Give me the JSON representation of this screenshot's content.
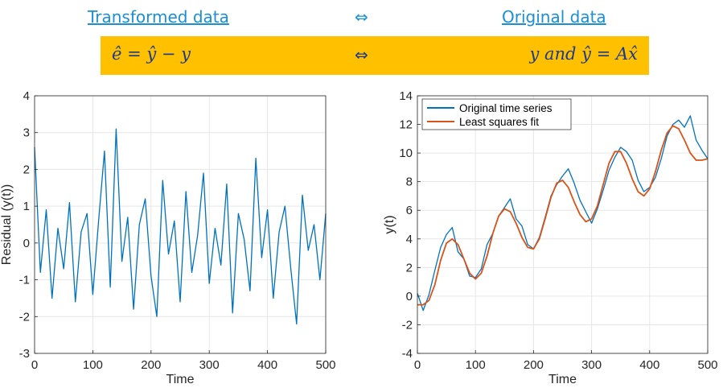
{
  "header": {
    "left_link": "Transformed data",
    "right_link": "Original data",
    "arrow": "⇔"
  },
  "formula_band": {
    "left_formula": "ê = ŷ − y",
    "arrow": "⇔",
    "right_formula": "y  and  ŷ = Ax̂",
    "color": "#ffc000"
  },
  "chart_data": [
    {
      "type": "line",
      "title": "",
      "xlabel": "Time",
      "ylabel": "Residual (y(t))",
      "xlim": [
        0,
        500
      ],
      "ylim": [
        -3,
        4
      ],
      "xticks": [
        0,
        100,
        200,
        300,
        400,
        500
      ],
      "yticks": [
        -3,
        -2,
        -1,
        0,
        1,
        2,
        3,
        4
      ],
      "grid": true,
      "series": [
        {
          "color": "#0072bd",
          "description": "white-noise residuals, 500 samples",
          "x": [
            0,
            10,
            20,
            30,
            40,
            50,
            60,
            70,
            80,
            90,
            100,
            110,
            120,
            130,
            140,
            150,
            160,
            170,
            180,
            190,
            200,
            210,
            220,
            230,
            240,
            250,
            260,
            270,
            280,
            290,
            300,
            310,
            320,
            330,
            340,
            350,
            360,
            370,
            380,
            390,
            400,
            410,
            420,
            430,
            440,
            450,
            460,
            470,
            480,
            490,
            500
          ],
          "values": [
            2.6,
            -0.8,
            0.9,
            -1.5,
            0.4,
            -0.7,
            1.1,
            -1.6,
            0.3,
            0.8,
            -1.4,
            0.6,
            2.5,
            -1.2,
            3.1,
            -0.5,
            0.7,
            -1.8,
            0.5,
            1.2,
            -0.9,
            -2.0,
            1.7,
            -0.3,
            0.6,
            -1.6,
            1.4,
            -0.8,
            0.2,
            1.9,
            -1.1,
            0.4,
            -0.6,
            1.6,
            -1.9,
            0.8,
            0.1,
            -1.3,
            2.3,
            -0.4,
            0.9,
            -1.5,
            0.3,
            1.0,
            -0.7,
            -2.2,
            1.3,
            -0.2,
            0.5,
            -1.0,
            0.8
          ]
        }
      ]
    },
    {
      "type": "line",
      "title": "",
      "xlabel": "Time",
      "ylabel": "y(t)",
      "xlim": [
        0,
        500
      ],
      "ylim": [
        -4,
        14
      ],
      "xticks": [
        0,
        100,
        200,
        300,
        400,
        500
      ],
      "yticks": [
        -4,
        -2,
        0,
        2,
        4,
        6,
        8,
        10,
        12,
        14
      ],
      "grid": true,
      "legend_position": "top-left",
      "series": [
        {
          "name": "Original time series",
          "color": "#0072bd",
          "x": [
            0,
            10,
            20,
            30,
            40,
            50,
            60,
            70,
            80,
            90,
            100,
            110,
            120,
            130,
            140,
            150,
            160,
            170,
            180,
            190,
            200,
            210,
            220,
            230,
            240,
            250,
            260,
            270,
            280,
            290,
            300,
            310,
            320,
            330,
            340,
            350,
            360,
            370,
            380,
            390,
            400,
            410,
            420,
            430,
            440,
            450,
            460,
            470,
            480,
            490,
            500
          ],
          "values": [
            0.2,
            -1.0,
            0.1,
            1.8,
            3.4,
            4.3,
            4.8,
            3.1,
            2.6,
            1.4,
            1.3,
            1.9,
            3.6,
            4.4,
            5.6,
            6.2,
            6.8,
            5.4,
            4.9,
            3.6,
            3.3,
            4.1,
            5.5,
            7.0,
            7.8,
            8.4,
            8.9,
            7.9,
            6.7,
            5.9,
            5.1,
            6.1,
            7.4,
            8.8,
            9.7,
            10.4,
            10.1,
            9.5,
            8.1,
            7.3,
            7.6,
            8.3,
            9.6,
            11.2,
            12.0,
            12.3,
            11.8,
            12.6,
            10.9,
            10.2,
            9.6
          ]
        },
        {
          "name": "Least squares fit",
          "color": "#d95319",
          "x": [
            0,
            10,
            20,
            30,
            40,
            50,
            60,
            70,
            80,
            90,
            100,
            110,
            120,
            130,
            140,
            150,
            160,
            170,
            180,
            190,
            200,
            210,
            220,
            230,
            240,
            250,
            260,
            270,
            280,
            290,
            300,
            310,
            320,
            330,
            340,
            350,
            360,
            370,
            380,
            390,
            400,
            410,
            420,
            430,
            440,
            450,
            460,
            470,
            480,
            490,
            500
          ],
          "values": [
            -0.6,
            -0.6,
            -0.3,
            0.8,
            2.5,
            3.7,
            4.0,
            3.6,
            2.6,
            1.6,
            1.2,
            1.6,
            2.8,
            4.4,
            5.6,
            6.1,
            5.9,
            5.1,
            4.1,
            3.4,
            3.3,
            4.0,
            5.4,
            6.9,
            7.9,
            8.1,
            7.6,
            6.6,
            5.7,
            5.2,
            5.4,
            6.3,
            7.8,
            9.3,
            10.1,
            10.1,
            9.3,
            8.2,
            7.3,
            7.0,
            7.5,
            8.7,
            10.2,
            11.4,
            11.9,
            11.7,
            10.9,
            10.0,
            9.5,
            9.5,
            9.6
          ]
        }
      ]
    }
  ]
}
